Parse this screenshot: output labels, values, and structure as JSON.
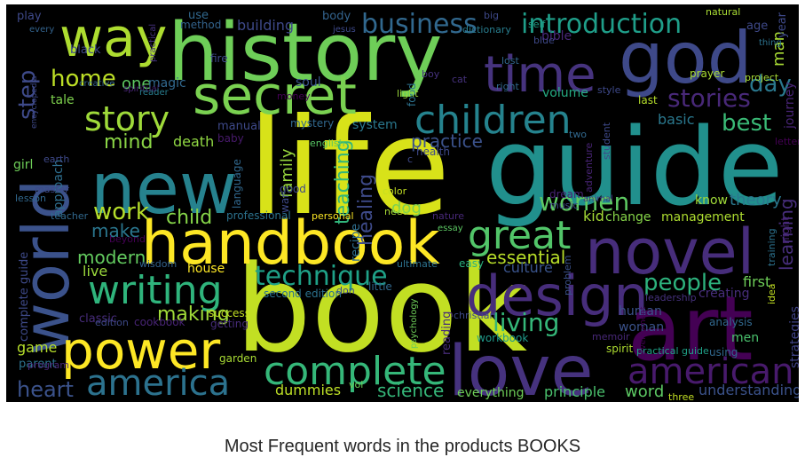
{
  "caption": "Most Frequent words in the products BOOKS",
  "cloud": {
    "background": "#000000",
    "words": [
      {
        "text": "life",
        "color": "#d8e219"
      },
      {
        "text": "guide",
        "color": "#21908d"
      },
      {
        "text": "book",
        "color": "#c2df23"
      },
      {
        "text": "history",
        "color": "#6ece58"
      },
      {
        "text": "new",
        "color": "#26828e"
      },
      {
        "text": "handbook",
        "color": "#fde725"
      },
      {
        "text": "love",
        "color": "#46327e"
      },
      {
        "text": "art",
        "color": "#440154"
      },
      {
        "text": "world",
        "color": "#3b528b"
      },
      {
        "text": "god",
        "color": "#3e4989"
      },
      {
        "text": "secret",
        "color": "#7ad151"
      },
      {
        "text": "design",
        "color": "#472d7b"
      },
      {
        "text": "power",
        "color": "#fde725"
      },
      {
        "text": "novel",
        "color": "#472d7b"
      },
      {
        "text": "way",
        "color": "#addc30"
      },
      {
        "text": "time",
        "color": "#46337e"
      },
      {
        "text": "complete",
        "color": "#35b779"
      },
      {
        "text": "writing",
        "color": "#2fb47c"
      },
      {
        "text": "america",
        "color": "#2c728e"
      },
      {
        "text": "american",
        "color": "#481a6c"
      },
      {
        "text": "children",
        "color": "#25838e"
      },
      {
        "text": "great",
        "color": "#52c569"
      },
      {
        "text": "story",
        "color": "#9fda3a"
      },
      {
        "text": "business",
        "color": "#31688e"
      },
      {
        "text": "introduction",
        "color": "#1f9e89"
      },
      {
        "text": "technique",
        "color": "#1fa187"
      },
      {
        "text": "women",
        "color": "#5ec962"
      },
      {
        "text": "living",
        "color": "#35b779"
      },
      {
        "text": "work",
        "color": "#b5de2b"
      },
      {
        "text": "people",
        "color": "#2db27d"
      },
      {
        "text": "stories",
        "color": "#482878"
      },
      {
        "text": "best",
        "color": "#3aba76"
      },
      {
        "text": "home",
        "color": "#bddf26"
      },
      {
        "text": "day",
        "color": "#2a788e"
      },
      {
        "text": "step",
        "color": "#3e4a89"
      },
      {
        "text": "child",
        "color": "#86d549"
      },
      {
        "text": "heart",
        "color": "#3b528b"
      },
      {
        "text": "mind",
        "color": "#8bd646"
      },
      {
        "text": "science",
        "color": "#35b779"
      },
      {
        "text": "making",
        "color": "#a0da39"
      },
      {
        "text": "modern",
        "color": "#63cb5f"
      },
      {
        "text": "make",
        "color": "#2a768e"
      },
      {
        "text": "practice",
        "color": "#3b528b"
      },
      {
        "text": "learning",
        "color": "#472e7c"
      },
      {
        "text": "essential",
        "color": "#b8de29"
      },
      {
        "text": "healing",
        "color": "#3e4a89"
      },
      {
        "text": "teaching",
        "color": "#31b57b"
      },
      {
        "text": "family",
        "color": "#99d83e"
      },
      {
        "text": "man",
        "color": "#a8db34"
      },
      {
        "text": "theory",
        "color": "#2a788e"
      },
      {
        "text": "principle",
        "color": "#4ac16d"
      },
      {
        "text": "word",
        "color": "#5cc863"
      },
      {
        "text": "dummies",
        "color": "#bddf26"
      },
      {
        "text": "understanding",
        "color": "#3b528b"
      },
      {
        "text": "everything",
        "color": "#6ece58"
      },
      {
        "text": "first",
        "color": "#6ece58"
      },
      {
        "text": "game",
        "color": "#b5de2b"
      },
      {
        "text": "death",
        "color": "#90d743"
      },
      {
        "text": "culture",
        "color": "#3a548c"
      },
      {
        "text": "dog",
        "color": "#7ad151"
      },
      {
        "text": "live",
        "color": "#9bd93c"
      },
      {
        "text": "house",
        "color": "#fde725"
      },
      {
        "text": "one",
        "color": "#5ec962"
      },
      {
        "text": "building",
        "color": "#3e4989"
      },
      {
        "text": "basic",
        "color": "#2a788e"
      },
      {
        "text": "system",
        "color": "#2a788e"
      },
      {
        "text": "journey",
        "color": "#482475"
      },
      {
        "text": "kid",
        "color": "#a5db36"
      },
      {
        "text": "change",
        "color": "#86d549"
      },
      {
        "text": "know",
        "color": "#a0da39"
      },
      {
        "text": "management",
        "color": "#addc30"
      },
      {
        "text": "volume",
        "color": "#25ab82"
      },
      {
        "text": "woman",
        "color": "#3b528b"
      },
      {
        "text": "human",
        "color": "#3b528b"
      },
      {
        "text": "creating",
        "color": "#472d7b"
      },
      {
        "text": "strategies",
        "color": "#404387"
      },
      {
        "text": "men",
        "color": "#4ac16d"
      },
      {
        "text": "recipe",
        "color": "#2e6e8e"
      },
      {
        "text": "approach",
        "color": "#2e6e8e"
      },
      {
        "text": "tale",
        "color": "#7fd34e"
      },
      {
        "text": "girl",
        "color": "#6ece58"
      },
      {
        "text": "complete guide",
        "color": "#3e4a89"
      },
      {
        "text": "second edition",
        "color": "#2c728e"
      },
      {
        "text": "parent",
        "color": "#2c728e"
      },
      {
        "text": "classic",
        "color": "#472c7a"
      },
      {
        "text": "workbook",
        "color": "#1f9a8a"
      },
      {
        "text": "easy",
        "color": "#2ab07f"
      },
      {
        "text": "reading",
        "color": "#472c7a"
      },
      {
        "text": "manual",
        "color": "#3e4989"
      },
      {
        "text": "food",
        "color": "#2c728e"
      },
      {
        "text": "english",
        "color": "#58c765"
      },
      {
        "text": "garden",
        "color": "#a8db34"
      },
      {
        "text": "bible",
        "color": "#482878"
      },
      {
        "text": "soul",
        "color": "#3a548c"
      },
      {
        "text": "body",
        "color": "#33638d"
      },
      {
        "text": "use",
        "color": "#31688e"
      },
      {
        "text": "method",
        "color": "#33638d"
      },
      {
        "text": "magic",
        "color": "#31688e"
      },
      {
        "text": "black",
        "color": "#3e4989"
      },
      {
        "text": "play",
        "color": "#3e4989"
      },
      {
        "text": "every",
        "color": "#33638d"
      },
      {
        "text": "spiritual",
        "color": "#482475"
      },
      {
        "text": "encyclopedia",
        "color": "#3e4989"
      },
      {
        "text": "creative",
        "color": "#33638d"
      },
      {
        "text": "practical",
        "color": "#46327e"
      },
      {
        "text": "fire",
        "color": "#3e4989"
      },
      {
        "text": "reader",
        "color": "#287d8e"
      },
      {
        "text": "mystery",
        "color": "#31688e"
      },
      {
        "text": "baby",
        "color": "#481a6c"
      },
      {
        "text": "language",
        "color": "#31688e"
      },
      {
        "text": "war",
        "color": "#3e4989"
      },
      {
        "text": "good",
        "color": "#3e4989"
      },
      {
        "text": "earth",
        "color": "#3e4989"
      },
      {
        "text": "master",
        "color": "#3e4989"
      },
      {
        "text": "lesson",
        "color": "#31688e"
      },
      {
        "text": "teacher",
        "color": "#31688e"
      },
      {
        "text": "beyond",
        "color": "#440154"
      },
      {
        "text": "professional",
        "color": "#2c728e"
      },
      {
        "text": "personal",
        "color": "#fde725"
      },
      {
        "text": "wisdom",
        "color": "#33638d"
      },
      {
        "text": "success",
        "color": "#c2df23"
      },
      {
        "text": "edition",
        "color": "#3e4989"
      },
      {
        "text": "cookbook",
        "color": "#482475"
      },
      {
        "text": "getting",
        "color": "#472c7a"
      },
      {
        "text": "program",
        "color": "#482878"
      },
      {
        "text": "jesus",
        "color": "#3e4989"
      },
      {
        "text": "dictionary",
        "color": "#287d8e"
      },
      {
        "text": "big",
        "color": "#3e4989"
      },
      {
        "text": "self",
        "color": "#1fa187"
      },
      {
        "text": "blue",
        "color": "#3e4989"
      },
      {
        "text": "lost",
        "color": "#31688e"
      },
      {
        "text": "right",
        "color": "#31688e"
      },
      {
        "text": "boy",
        "color": "#46327e"
      },
      {
        "text": "light",
        "color": "#9bd93c"
      },
      {
        "text": "cat",
        "color": "#46327e"
      },
      {
        "text": "money",
        "color": "#440154"
      },
      {
        "text": "color",
        "color": "#c2df23"
      },
      {
        "text": "need",
        "color": "#a8db34"
      },
      {
        "text": "nature",
        "color": "#482878"
      },
      {
        "text": "essay",
        "color": "#5cc863"
      },
      {
        "text": "ultimate",
        "color": "#2c728e"
      },
      {
        "text": "don",
        "color": "#3e4989"
      },
      {
        "text": "little",
        "color": "#31688e"
      },
      {
        "text": "psychology",
        "color": "#6ece58"
      },
      {
        "text": "christian",
        "color": "#3e4989"
      },
      {
        "text": "vol",
        "color": "#6ece58"
      },
      {
        "text": "health",
        "color": "#3e4989"
      },
      {
        "text": "two",
        "color": "#31688e"
      },
      {
        "text": "dream",
        "color": "#482475"
      },
      {
        "text": "animal",
        "color": "#46327e"
      },
      {
        "text": "music",
        "color": "#3e4989"
      },
      {
        "text": "adventure",
        "color": "#482475"
      },
      {
        "text": "student",
        "color": "#3e4989"
      },
      {
        "text": "problem",
        "color": "#3b528b"
      },
      {
        "text": "leadership",
        "color": "#46327e"
      },
      {
        "text": "memoir",
        "color": "#482878"
      },
      {
        "text": "spirit",
        "color": "#addc30"
      },
      {
        "text": "practical guide",
        "color": "#1fa187"
      },
      {
        "text": "using",
        "color": "#31688e"
      },
      {
        "text": "development",
        "color": "#440154"
      },
      {
        "text": "three",
        "color": "#c2df23"
      },
      {
        "text": "analysis",
        "color": "#31688e"
      },
      {
        "text": "idea",
        "color": "#c2df23"
      },
      {
        "text": "training",
        "color": "#2c728e"
      },
      {
        "text": "night",
        "color": "#482475"
      },
      {
        "text": "letter",
        "color": "#440154"
      },
      {
        "text": "prayer",
        "color": "#a8db34"
      },
      {
        "text": "project",
        "color": "#a8db34"
      },
      {
        "text": "last",
        "color": "#b5de2b"
      },
      {
        "text": "style",
        "color": "#3e4989"
      },
      {
        "text": "thing",
        "color": "#2c728e"
      },
      {
        "text": "age",
        "color": "#3e4989"
      },
      {
        "text": "year",
        "color": "#3e4989"
      },
      {
        "text": "natural",
        "color": "#a8db34"
      },
      {
        "text": "c",
        "color": "#3e4989"
      }
    ]
  }
}
